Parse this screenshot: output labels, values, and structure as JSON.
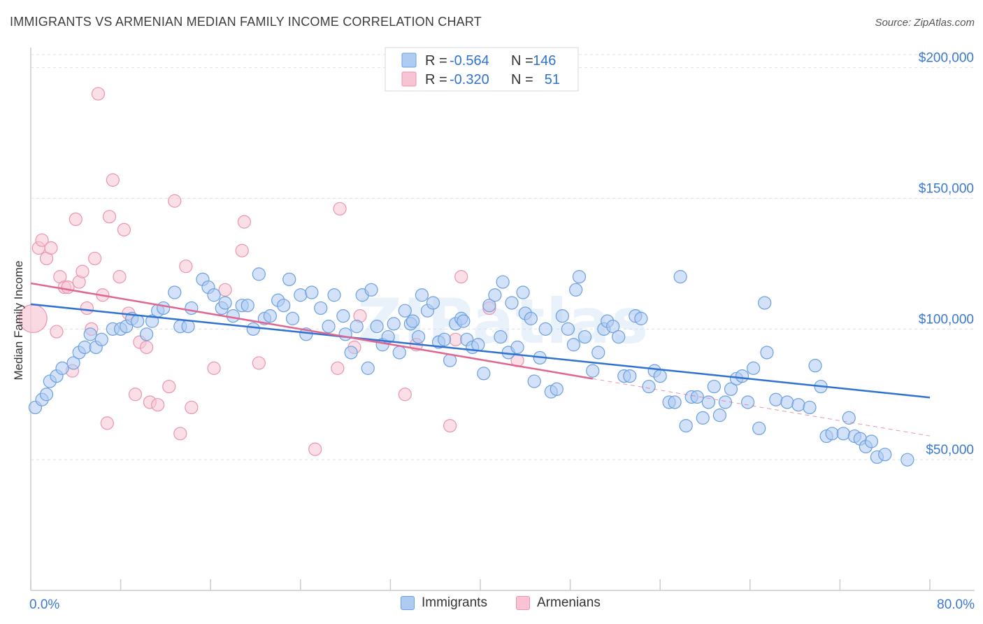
{
  "title": "IMMIGRANTS VS ARMENIAN MEDIAN FAMILY INCOME CORRELATION CHART",
  "source": "Source: ZipAtlas.com",
  "watermark": "ZIPatlas",
  "legend_box": {
    "rows": [
      {
        "r_label": "R =",
        "r_value": "-0.564",
        "n_label": "N =",
        "n_value": "146"
      },
      {
        "r_label": "R =",
        "r_value": "-0.320",
        "n_label": "N =",
        "n_value": "51"
      }
    ]
  },
  "colors": {
    "immigrants_fill": "#aecbf2",
    "immigrants_stroke": "#6a9fe0",
    "immigrants_line": "#2f72d0",
    "armenians_fill": "#f8c4d3",
    "armenians_stroke": "#ea94ae",
    "armenians_line": "#e0668f",
    "axis_label": "#3b78d0",
    "grid": "#dde1e6"
  },
  "chart_data": {
    "type": "scatter",
    "ylabel": "Median Family Income",
    "xlim": [
      0,
      80
    ],
    "ylim": [
      0,
      205000
    ],
    "x_tick_labels": [
      {
        "value": 0,
        "label": "0.0%"
      },
      {
        "value": 80,
        "label": "80.0%"
      }
    ],
    "y_ticks": [
      {
        "value": 50000,
        "label": "$50,000"
      },
      {
        "value": 100000,
        "label": "$100,000"
      },
      {
        "value": 150000,
        "label": "$150,000"
      },
      {
        "value": 200000,
        "label": "$200,000"
      }
    ],
    "legend": [
      "Immigrants",
      "Armenians"
    ],
    "series": [
      {
        "name": "Immigrants",
        "r": -0.564,
        "n": 146,
        "trend": {
          "x": [
            0,
            80
          ],
          "y": [
            109500,
            73800
          ]
        },
        "points": [
          [
            0.4,
            70000
          ],
          [
            1.0,
            73000
          ],
          [
            1.4,
            75000
          ],
          [
            1.7,
            80000
          ],
          [
            2.3,
            82000
          ],
          [
            2.8,
            85000
          ],
          [
            3.8,
            87000
          ],
          [
            4.3,
            91000
          ],
          [
            4.8,
            93000
          ],
          [
            5.3,
            98000
          ],
          [
            5.8,
            93000
          ],
          [
            6.3,
            96000
          ],
          [
            7.3,
            100000
          ],
          [
            8.0,
            100000
          ],
          [
            8.5,
            101000
          ],
          [
            9.0,
            104000
          ],
          [
            9.5,
            103000
          ],
          [
            10.3,
            98000
          ],
          [
            10.8,
            103000
          ],
          [
            11.3,
            107000
          ],
          [
            11.8,
            108000
          ],
          [
            12.8,
            114000
          ],
          [
            13.3,
            101000
          ],
          [
            14.0,
            101000
          ],
          [
            14.3,
            108000
          ],
          [
            15.3,
            119000
          ],
          [
            15.8,
            116000
          ],
          [
            16.3,
            113000
          ],
          [
            17.0,
            108000
          ],
          [
            17.3,
            110000
          ],
          [
            18.0,
            105000
          ],
          [
            18.8,
            109000
          ],
          [
            19.3,
            109000
          ],
          [
            19.8,
            100000
          ],
          [
            20.3,
            121000
          ],
          [
            20.8,
            104000
          ],
          [
            21.3,
            105000
          ],
          [
            22.0,
            111000
          ],
          [
            22.5,
            109000
          ],
          [
            23.0,
            119000
          ],
          [
            23.3,
            104000
          ],
          [
            24.0,
            113000
          ],
          [
            24.5,
            98000
          ],
          [
            25.0,
            114000
          ],
          [
            25.8,
            108000
          ],
          [
            26.5,
            101000
          ],
          [
            27.0,
            113000
          ],
          [
            27.8,
            105000
          ],
          [
            28.0,
            98000
          ],
          [
            28.5,
            91000
          ],
          [
            29.0,
            101000
          ],
          [
            29.5,
            113000
          ],
          [
            30.0,
            85000
          ],
          [
            30.3,
            115000
          ],
          [
            30.8,
            101000
          ],
          [
            31.3,
            94000
          ],
          [
            31.8,
            97000
          ],
          [
            32.3,
            102000
          ],
          [
            32.8,
            91000
          ],
          [
            33.3,
            107000
          ],
          [
            33.8,
            102000
          ],
          [
            34.0,
            103000
          ],
          [
            34.5,
            97000
          ],
          [
            34.8,
            113000
          ],
          [
            35.3,
            107000
          ],
          [
            35.8,
            110000
          ],
          [
            36.3,
            95000
          ],
          [
            36.8,
            96000
          ],
          [
            37.3,
            88000
          ],
          [
            37.8,
            102000
          ],
          [
            38.3,
            104000
          ],
          [
            38.5,
            103000
          ],
          [
            38.8,
            96000
          ],
          [
            39.3,
            93000
          ],
          [
            39.8,
            94000
          ],
          [
            40.3,
            83000
          ],
          [
            40.8,
            109000
          ],
          [
            41.3,
            113000
          ],
          [
            41.8,
            97000
          ],
          [
            42.0,
            118000
          ],
          [
            42.5,
            91000
          ],
          [
            42.8,
            110000
          ],
          [
            43.3,
            93000
          ],
          [
            43.8,
            114000
          ],
          [
            44.0,
            106000
          ],
          [
            44.5,
            104000
          ],
          [
            44.8,
            80000
          ],
          [
            45.3,
            89000
          ],
          [
            45.8,
            100000
          ],
          [
            46.3,
            76000
          ],
          [
            46.8,
            77000
          ],
          [
            47.3,
            105000
          ],
          [
            47.8,
            100000
          ],
          [
            48.3,
            94000
          ],
          [
            48.8,
            120000
          ],
          [
            48.5,
            115000
          ],
          [
            49.3,
            97000
          ],
          [
            50.0,
            84000
          ],
          [
            50.5,
            91000
          ],
          [
            51.0,
            100000
          ],
          [
            51.3,
            103000
          ],
          [
            51.8,
            101000
          ],
          [
            52.3,
            97000
          ],
          [
            52.8,
            82000
          ],
          [
            53.3,
            82000
          ],
          [
            53.8,
            105000
          ],
          [
            54.3,
            104000
          ],
          [
            55.0,
            78000
          ],
          [
            55.5,
            84000
          ],
          [
            56.0,
            82000
          ],
          [
            56.8,
            72000
          ],
          [
            57.3,
            72000
          ],
          [
            57.8,
            120000
          ],
          [
            58.3,
            63000
          ],
          [
            58.8,
            74000
          ],
          [
            59.3,
            74000
          ],
          [
            59.8,
            66000
          ],
          [
            60.3,
            72000
          ],
          [
            60.8,
            78000
          ],
          [
            61.3,
            67000
          ],
          [
            61.8,
            72000
          ],
          [
            62.3,
            77000
          ],
          [
            62.8,
            81000
          ],
          [
            63.3,
            82000
          ],
          [
            63.8,
            72000
          ],
          [
            64.3,
            85000
          ],
          [
            64.8,
            62000
          ],
          [
            65.3,
            110000
          ],
          [
            65.5,
            91000
          ],
          [
            66.3,
            73000
          ],
          [
            67.3,
            72000
          ],
          [
            68.3,
            71000
          ],
          [
            69.3,
            70000
          ],
          [
            69.8,
            86000
          ],
          [
            70.3,
            78000
          ],
          [
            70.8,
            59000
          ],
          [
            71.3,
            60000
          ],
          [
            72.3,
            60000
          ],
          [
            72.8,
            66000
          ],
          [
            73.3,
            59000
          ],
          [
            73.8,
            58000
          ],
          [
            74.3,
            55000
          ],
          [
            74.8,
            57000
          ],
          [
            75.3,
            51000
          ],
          [
            76.0,
            52000
          ],
          [
            78.0,
            50000
          ]
        ]
      },
      {
        "name": "Armenians",
        "r": -0.32,
        "n": 51,
        "trend": {
          "x": [
            0,
            50
          ],
          "y": [
            117500,
            81000
          ]
        },
        "points": [
          [
            0.2,
            104000
          ],
          [
            0.7,
            131000
          ],
          [
            1.0,
            134000
          ],
          [
            1.4,
            127000
          ],
          [
            1.8,
            131000
          ],
          [
            2.3,
            99000
          ],
          [
            2.6,
            120000
          ],
          [
            3.0,
            116000
          ],
          [
            3.3,
            116000
          ],
          [
            3.7,
            84000
          ],
          [
            4.0,
            142000
          ],
          [
            4.3,
            118000
          ],
          [
            4.6,
            122000
          ],
          [
            5.0,
            108000
          ],
          [
            5.4,
            100000
          ],
          [
            5.7,
            127000
          ],
          [
            6.0,
            190000
          ],
          [
            6.4,
            113000
          ],
          [
            6.8,
            64000
          ],
          [
            7.0,
            143000
          ],
          [
            7.3,
            157000
          ],
          [
            7.9,
            120000
          ],
          [
            8.3,
            138000
          ],
          [
            8.7,
            106000
          ],
          [
            9.3,
            75000
          ],
          [
            9.7,
            95000
          ],
          [
            10.3,
            93000
          ],
          [
            10.6,
            72000
          ],
          [
            11.3,
            71000
          ],
          [
            12.3,
            78000
          ],
          [
            12.8,
            149000
          ],
          [
            13.3,
            60000
          ],
          [
            13.8,
            124000
          ],
          [
            14.3,
            70000
          ],
          [
            16.3,
            85000
          ],
          [
            17.3,
            115000
          ],
          [
            18.8,
            130000
          ],
          [
            19.0,
            141000
          ],
          [
            20.3,
            87000
          ],
          [
            25.3,
            54000
          ],
          [
            27.3,
            85000
          ],
          [
            27.5,
            146000
          ],
          [
            28.8,
            93000
          ],
          [
            29.3,
            105000
          ],
          [
            33.3,
            75000
          ],
          [
            34.3,
            94000
          ],
          [
            37.3,
            63000
          ],
          [
            37.8,
            96000
          ],
          [
            38.3,
            120000
          ],
          [
            40.8,
            108000
          ],
          [
            43.3,
            88000
          ]
        ]
      }
    ]
  }
}
